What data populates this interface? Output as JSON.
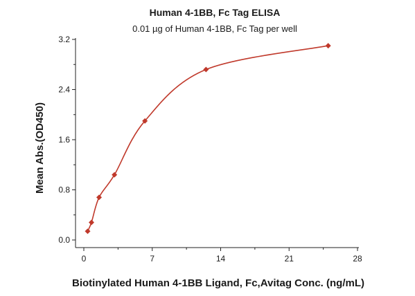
{
  "chart_data": {
    "type": "scatter",
    "title": "Human 4-1BB, Fc Tag ELISA",
    "subtitle": "0.01 µg of Human 4-1BB, Fc Tag per well",
    "xlabel": "Biotinylated Human 4-1BB Ligand, Fc,Avitag Conc. (ng/mL)",
    "ylabel": "Mean Abs.(OD450)",
    "xlim": [
      0,
      28
    ],
    "ylim": [
      0,
      3.2
    ],
    "x_ticks": [
      0,
      7,
      14,
      21,
      28
    ],
    "y_ticks": [
      0.0,
      0.8,
      1.6,
      2.4,
      3.2
    ],
    "x_tick_labels": [
      "0",
      "7",
      "14",
      "21",
      "28"
    ],
    "y_tick_labels": [
      "0.0",
      "0.8",
      "1.6",
      "2.4",
      "3.2"
    ],
    "grid": false,
    "series": [
      {
        "marker": "diamond",
        "color": "#c0392b",
        "x": [
          0.39,
          0.78,
          1.56,
          3.13,
          6.25,
          12.5,
          25
        ],
        "y": [
          0.14,
          0.28,
          0.68,
          1.04,
          1.9,
          2.72,
          3.1
        ],
        "fit": "smooth-curve"
      }
    ]
  }
}
